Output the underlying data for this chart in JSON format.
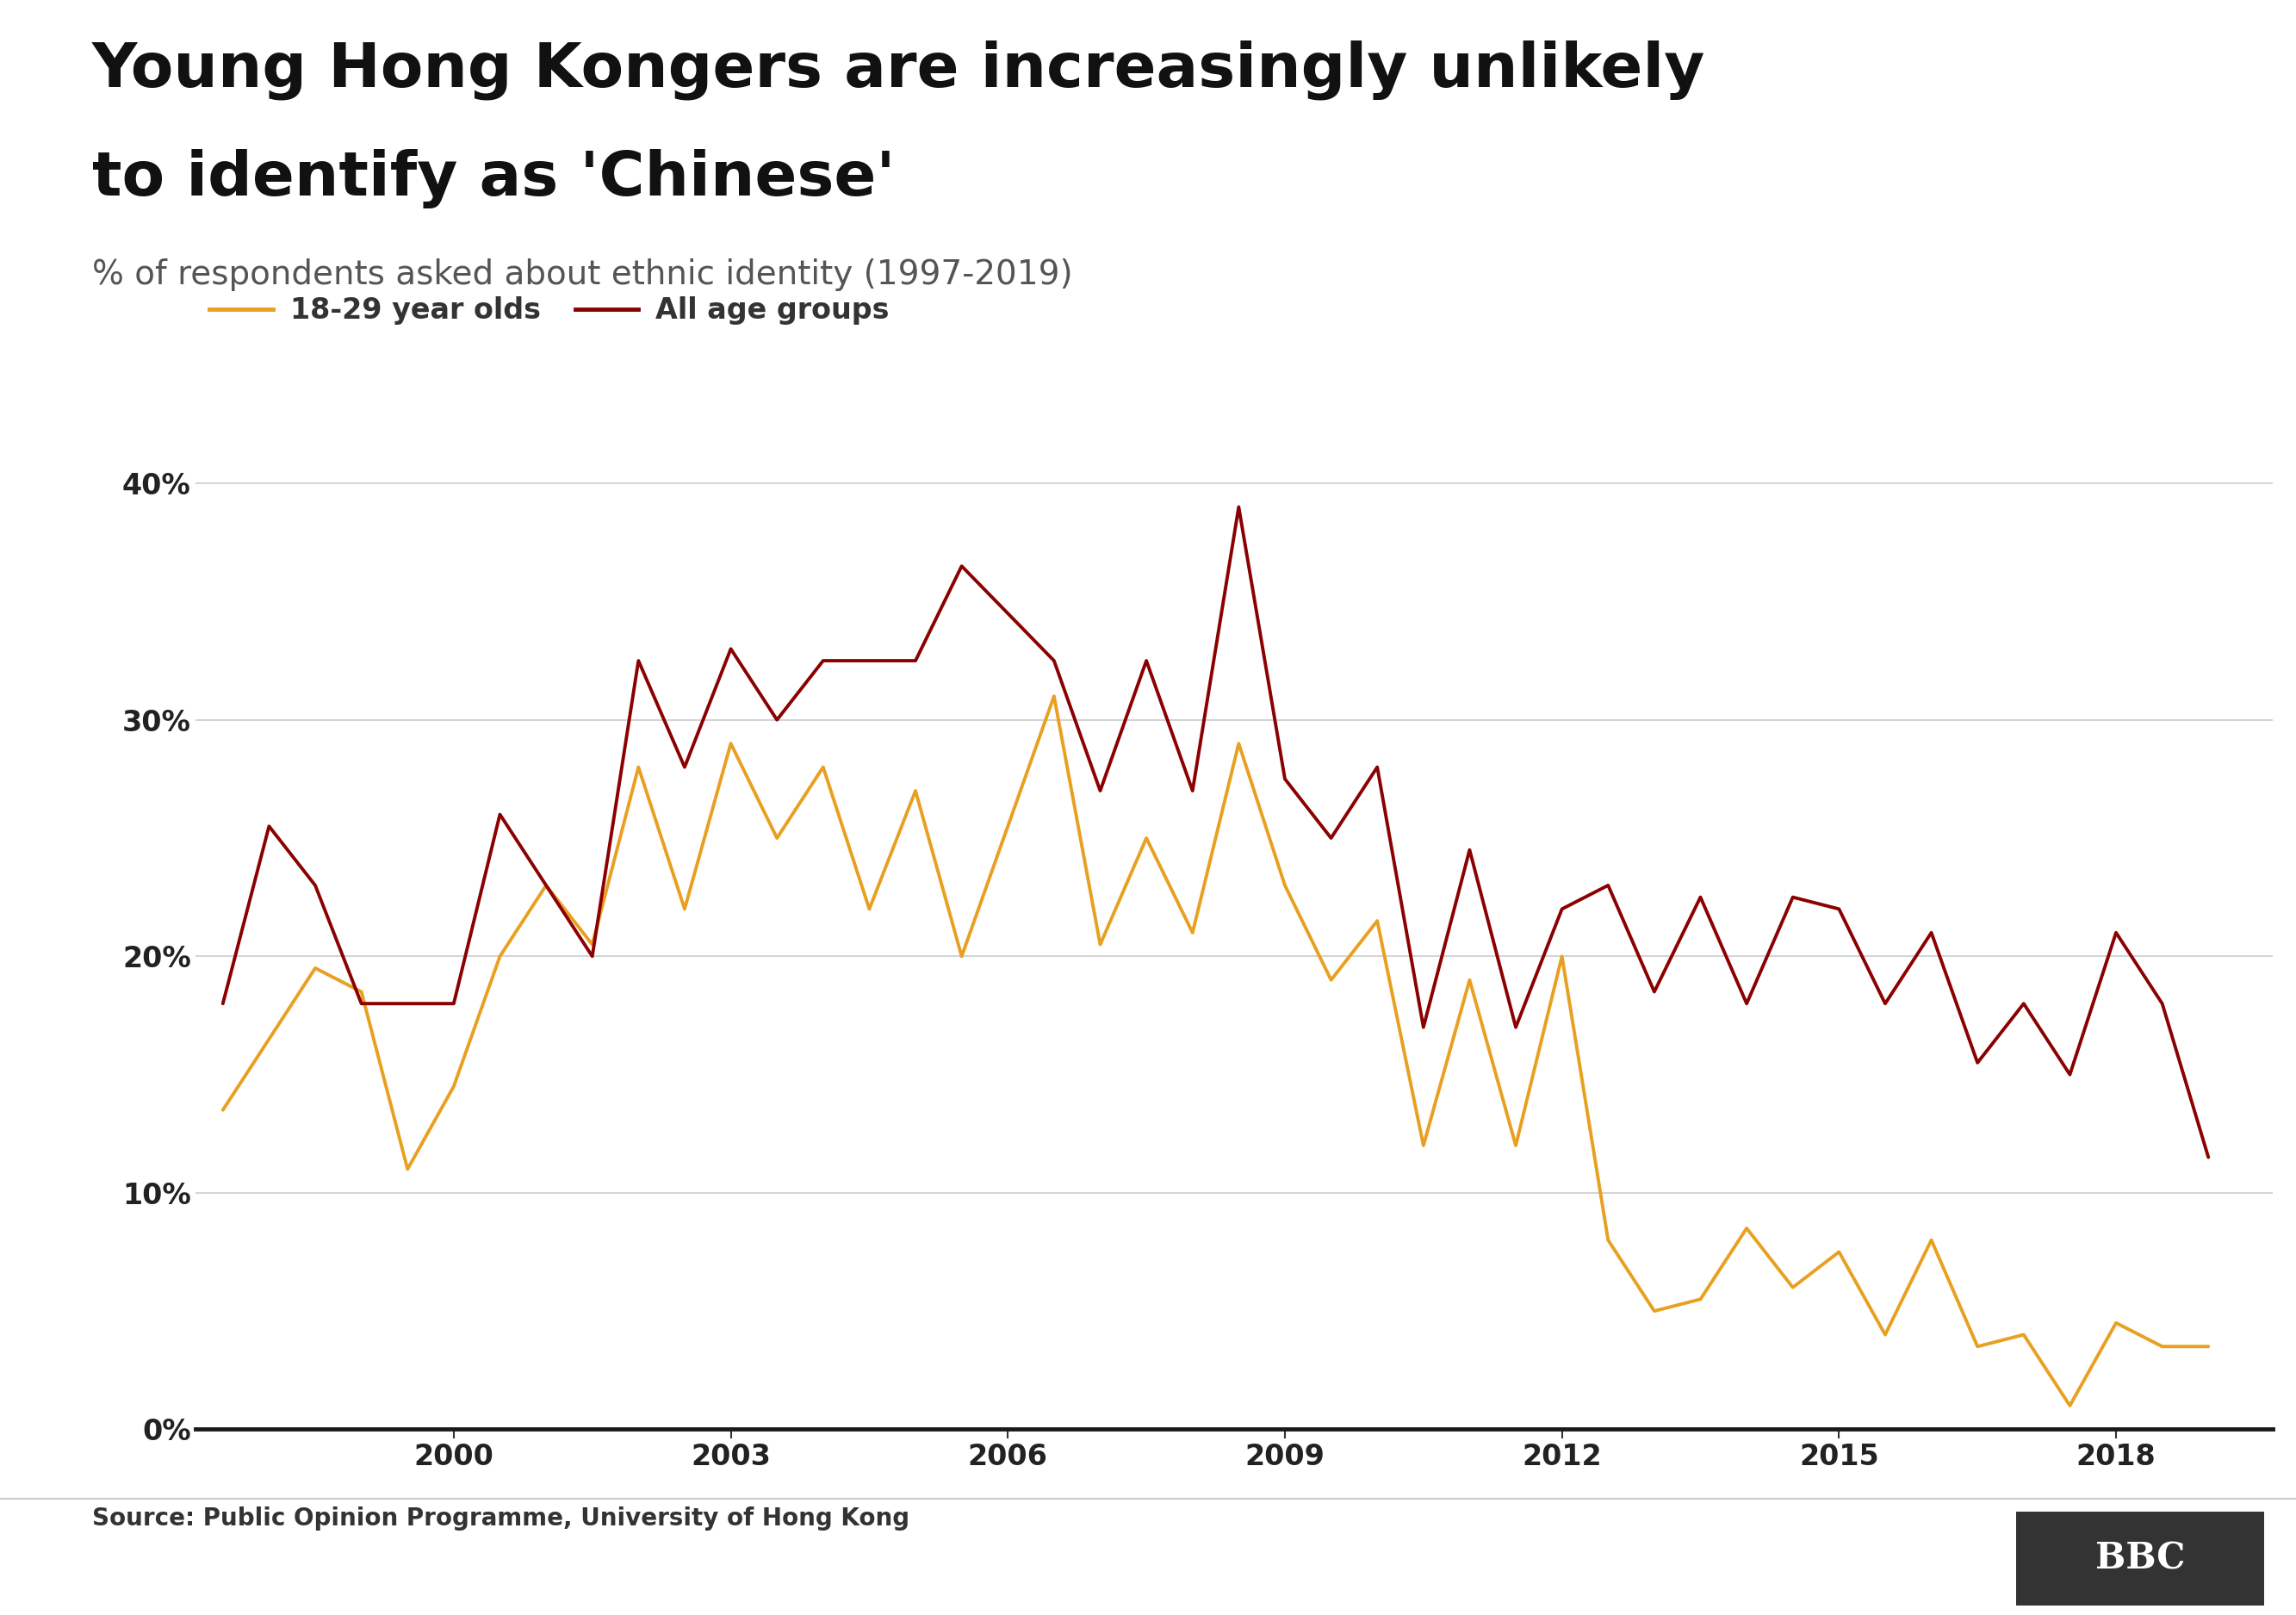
{
  "title_line1": "Young Hong Kongers are increasingly unlikely",
  "title_line2": "to identify as 'Chinese'",
  "subtitle": "% of respondents asked about ethnic identity (1997-2019)",
  "source": "Source: Public Opinion Programme, University of Hong Kong",
  "legend_young": "18-29 year olds",
  "legend_all": "All age groups",
  "color_young": "#E8A020",
  "color_all": "#8B0000",
  "background_color": "#FFFFFF",
  "ylim": [
    0,
    42
  ],
  "yticks": [
    0,
    10,
    20,
    30,
    40
  ],
  "ytick_labels": [
    "0%",
    "10%",
    "20%",
    "30%",
    "40%"
  ],
  "xticks": [
    2000,
    2003,
    2006,
    2009,
    2012,
    2015,
    2018
  ],
  "young_data": [
    [
      1997.5,
      13.5
    ],
    [
      1998.0,
      16.5
    ],
    [
      1998.5,
      19.5
    ],
    [
      1999.0,
      18.5
    ],
    [
      1999.5,
      11.0
    ],
    [
      2000.0,
      14.5
    ],
    [
      2000.5,
      20.0
    ],
    [
      2001.0,
      23.0
    ],
    [
      2001.5,
      20.5
    ],
    [
      2002.0,
      28.0
    ],
    [
      2002.5,
      22.0
    ],
    [
      2003.0,
      29.0
    ],
    [
      2003.5,
      25.0
    ],
    [
      2004.0,
      28.0
    ],
    [
      2004.5,
      22.0
    ],
    [
      2005.0,
      27.0
    ],
    [
      2005.5,
      20.0
    ],
    [
      2006.0,
      25.5
    ],
    [
      2006.5,
      31.0
    ],
    [
      2007.0,
      20.5
    ],
    [
      2007.5,
      25.0
    ],
    [
      2008.0,
      21.0
    ],
    [
      2008.5,
      29.0
    ],
    [
      2009.0,
      23.0
    ],
    [
      2009.5,
      19.0
    ],
    [
      2010.0,
      21.5
    ],
    [
      2010.5,
      12.0
    ],
    [
      2011.0,
      19.0
    ],
    [
      2011.5,
      12.0
    ],
    [
      2012.0,
      20.0
    ],
    [
      2012.5,
      8.0
    ],
    [
      2013.0,
      5.0
    ],
    [
      2013.5,
      5.5
    ],
    [
      2014.0,
      8.5
    ],
    [
      2014.5,
      6.0
    ],
    [
      2015.0,
      7.5
    ],
    [
      2015.5,
      4.0
    ],
    [
      2016.0,
      8.0
    ],
    [
      2016.5,
      3.5
    ],
    [
      2017.0,
      4.0
    ],
    [
      2017.5,
      1.0
    ],
    [
      2018.0,
      4.5
    ],
    [
      2018.5,
      3.5
    ],
    [
      2019.0,
      3.5
    ]
  ],
  "all_data": [
    [
      1997.5,
      18.0
    ],
    [
      1998.0,
      25.5
    ],
    [
      1998.5,
      23.0
    ],
    [
      1999.0,
      18.0
    ],
    [
      1999.5,
      18.0
    ],
    [
      2000.0,
      18.0
    ],
    [
      2000.5,
      26.0
    ],
    [
      2001.0,
      23.0
    ],
    [
      2001.5,
      20.0
    ],
    [
      2002.0,
      32.5
    ],
    [
      2002.5,
      28.0
    ],
    [
      2003.0,
      33.0
    ],
    [
      2003.5,
      30.0
    ],
    [
      2004.0,
      32.5
    ],
    [
      2004.5,
      32.5
    ],
    [
      2005.0,
      32.5
    ],
    [
      2005.5,
      36.5
    ],
    [
      2006.0,
      34.5
    ],
    [
      2006.5,
      32.5
    ],
    [
      2007.0,
      27.0
    ],
    [
      2007.5,
      32.5
    ],
    [
      2008.0,
      27.0
    ],
    [
      2008.5,
      39.0
    ],
    [
      2009.0,
      27.5
    ],
    [
      2009.5,
      25.0
    ],
    [
      2010.0,
      28.0
    ],
    [
      2010.5,
      17.0
    ],
    [
      2011.0,
      24.5
    ],
    [
      2011.5,
      17.0
    ],
    [
      2012.0,
      22.0
    ],
    [
      2012.5,
      23.0
    ],
    [
      2013.0,
      18.5
    ],
    [
      2013.5,
      22.5
    ],
    [
      2014.0,
      18.0
    ],
    [
      2014.5,
      22.5
    ],
    [
      2015.0,
      22.0
    ],
    [
      2015.5,
      18.0
    ],
    [
      2016.0,
      21.0
    ],
    [
      2016.5,
      15.5
    ],
    [
      2017.0,
      18.0
    ],
    [
      2017.5,
      15.0
    ],
    [
      2018.0,
      21.0
    ],
    [
      2018.5,
      18.0
    ],
    [
      2019.0,
      11.5
    ]
  ]
}
